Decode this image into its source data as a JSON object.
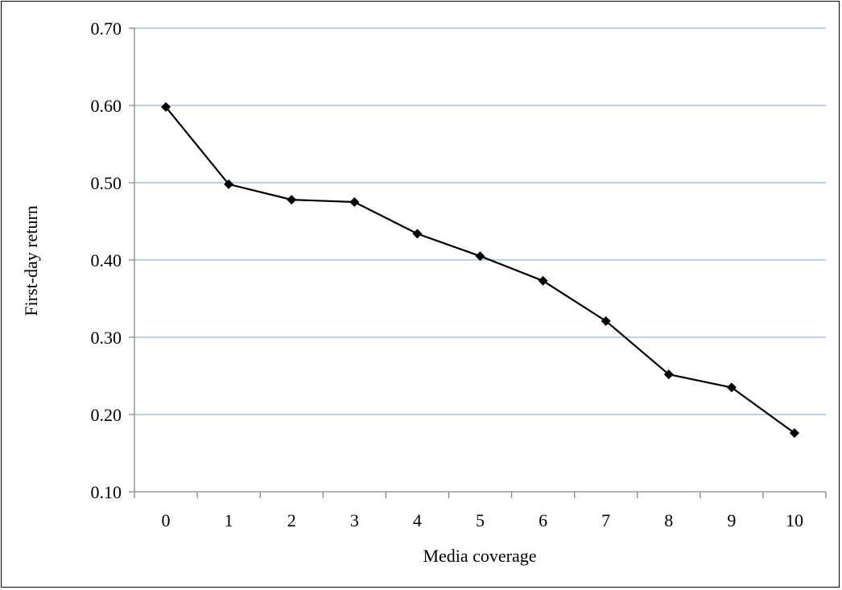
{
  "chart_data": {
    "type": "line",
    "title": "",
    "xlabel": "Media coverage",
    "ylabel": "First-day return",
    "x": [
      0,
      1,
      2,
      3,
      4,
      5,
      6,
      7,
      8,
      9,
      10
    ],
    "categories": [
      "0",
      "1",
      "2",
      "3",
      "4",
      "5",
      "6",
      "7",
      "8",
      "9",
      "10"
    ],
    "series": [
      {
        "values": [
          0.598,
          0.498,
          0.478,
          0.475,
          0.434,
          0.405,
          0.373,
          0.321,
          0.252,
          0.235,
          0.176
        ]
      }
    ],
    "ylim": [
      0.1,
      0.7
    ],
    "yticks": [
      "0.10",
      "0.20",
      "0.30",
      "0.40",
      "0.50",
      "0.60",
      "0.70"
    ],
    "ytick_values": [
      0.1,
      0.2,
      0.3,
      0.4,
      0.5,
      0.6,
      0.7
    ],
    "grid": "horizontal",
    "legend": "none",
    "line_color": "#000000",
    "grid_color": "#95B3D7",
    "marker": "diamond"
  }
}
